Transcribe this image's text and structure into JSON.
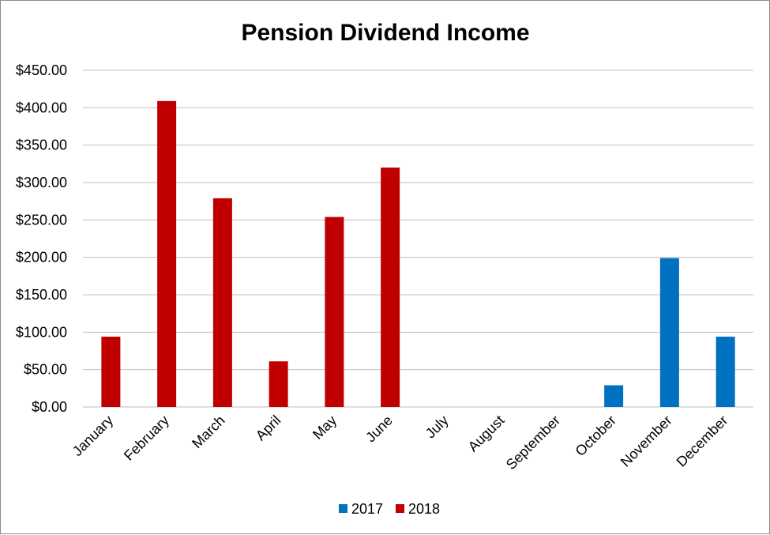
{
  "chart_data": {
    "type": "bar",
    "title": "Pension Dividend Income",
    "xlabel": "",
    "ylabel": "",
    "categories": [
      "January",
      "February",
      "March",
      "April",
      "May",
      "June",
      "July",
      "August",
      "September",
      "October",
      "November",
      "December"
    ],
    "series": [
      {
        "name": "2017",
        "color": "#0070c0",
        "values": [
          0,
          0,
          0,
          0,
          0,
          0,
          0,
          0,
          0,
          29,
          199,
          94
        ]
      },
      {
        "name": "2018",
        "color": "#c00000",
        "values": [
          94,
          409,
          279,
          61,
          254,
          320,
          0,
          0,
          0,
          0,
          0,
          0
        ]
      }
    ],
    "ylim": [
      0,
      450
    ],
    "yticks": [
      "$0.00",
      "$50.00",
      "$100.00",
      "$150.00",
      "$200.00",
      "$250.00",
      "$300.00",
      "$350.00",
      "$400.00",
      "$450.00"
    ],
    "grid": true,
    "legend_position": "bottom"
  }
}
